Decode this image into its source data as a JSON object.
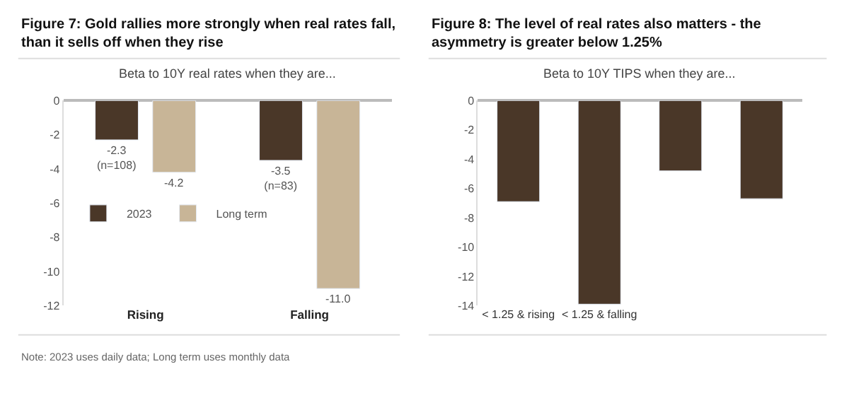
{
  "chart_data": [
    {
      "type": "bar",
      "title": "Figure 7: Gold rallies more strongly when real rates fall, than it sells off when they rise",
      "subtitle": "Beta to 10Y real rates when they are...",
      "categories": [
        "Rising",
        "Falling"
      ],
      "series": [
        {
          "name": "2023",
          "color": "#4a3728",
          "values": [
            -2.3,
            -3.5
          ],
          "value_labels": [
            "-2.3\n(n=108)",
            "-3.5\n(n=83)"
          ]
        },
        {
          "name": "Long term",
          "color": "#c8b597",
          "values": [
            -4.2,
            -11.0
          ],
          "value_labels": [
            "-4.2",
            "-11.0"
          ]
        }
      ],
      "ylim": [
        -12,
        0
      ],
      "yticks": [
        -12,
        -10,
        -8,
        -6,
        -4,
        -2,
        0
      ],
      "legend": "left",
      "annotations": [
        "Note: 2023 uses daily data; Long term uses monthly data"
      ]
    },
    {
      "type": "bar",
      "title": "Figure 8: The level of real rates also matters - the asymmetry is greater below 1.25%",
      "subtitle": "Beta to 10Y TIPS when they are...",
      "categories": [
        "< 1.25 & rising",
        "< 1.25 & falling",
        null,
        null
      ],
      "series": [
        {
          "color": "#4a3728",
          "values": [
            -6.9,
            -13.9,
            -4.8,
            -6.7
          ]
        }
      ],
      "ylim": [
        -14,
        0
      ],
      "yticks": [
        -14,
        -12,
        -10,
        -8,
        -6,
        -4,
        -2,
        0
      ]
    }
  ]
}
